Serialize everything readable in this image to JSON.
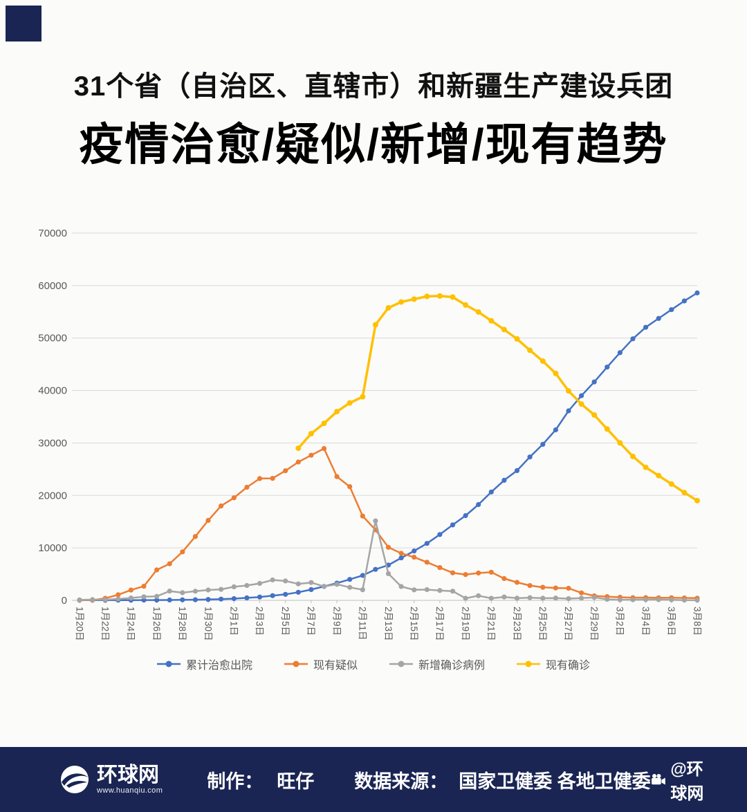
{
  "page": {
    "background": "#fbfbfa",
    "corner_color": "#1a2553"
  },
  "header": {
    "title_line1": "31个省（自治区、直辖市）和新疆生产建设兵团",
    "title_line2": "疫情治愈/疑似/新增/现有趋势"
  },
  "footer": {
    "background": "#1a2553",
    "logo_text": "环球网",
    "logo_url": "www.huanqiu.com",
    "credit_label": "制作：",
    "credit_value": "旺仔",
    "source_label": "数据来源：",
    "source_value": "国家卫健委 各地卫健委",
    "watermark": "@环球网"
  },
  "chart_data": {
    "type": "line",
    "title": "疫情治愈/疑似/新增/现有趋势",
    "xlabel": "",
    "ylabel": "",
    "ylim": [
      0,
      70000
    ],
    "y_tick_step": 10000,
    "x_tick_every": 2,
    "grid": true,
    "legend_position": "bottom",
    "grid_color": "#d9d9d9",
    "axis_color": "#bfbfbf",
    "tick_label_color": "#595959",
    "categories": [
      "1月20日",
      "1月21日",
      "1月22日",
      "1月23日",
      "1月24日",
      "1月25日",
      "1月26日",
      "1月27日",
      "1月28日",
      "1月29日",
      "1月30日",
      "1月31日",
      "2月1日",
      "2月2日",
      "2月3日",
      "2月4日",
      "2月5日",
      "2月6日",
      "2月7日",
      "2月8日",
      "2月9日",
      "2月10日",
      "2月11日",
      "2月12日",
      "2月13日",
      "2月14日",
      "2月15日",
      "2月16日",
      "2月17日",
      "2月18日",
      "2月19日",
      "2月20日",
      "2月21日",
      "2月22日",
      "2月23日",
      "2月24日",
      "2月25日",
      "2月26日",
      "2月27日",
      "2月28日",
      "2月29日",
      "3月1日",
      "3月2日",
      "3月3日",
      "3月4日",
      "3月5日",
      "3月6日",
      "3月7日",
      "3月8日"
    ],
    "series": [
      {
        "id": "cured",
        "name": "累计治愈出院",
        "color": "#4472C4",
        "line_width": 2.5,
        "marker_radius": 3.6,
        "values": [
          25,
          25,
          28,
          34,
          38,
          49,
          51,
          60,
          103,
          124,
          171,
          243,
          328,
          475,
          632,
          892,
          1153,
          1540,
          2050,
          2649,
          3281,
          3996,
          4740,
          5911,
          6723,
          8096,
          9419,
          10844,
          12552,
          14376,
          16155,
          18264,
          20659,
          22888,
          24734,
          27323,
          29745,
          32495,
          36117,
          39002,
          41625,
          44462,
          47204,
          49856,
          52045,
          53726,
          55404,
          57065,
          58600
        ]
      },
      {
        "id": "suspected",
        "name": "现有疑似",
        "color": "#ED7D31",
        "line_width": 2.5,
        "marker_radius": 3.6,
        "values": [
          54,
          37,
          393,
          1072,
          1965,
          2684,
          5794,
          6973,
          9239,
          12167,
          15238,
          17988,
          19544,
          21558,
          23214,
          23260,
          24702,
          26359,
          27657,
          28942,
          23589,
          21675,
          16067,
          13435,
          10109,
          8969,
          8228,
          7264,
          6242,
          5248,
          4922,
          5206,
          5365,
          4148,
          3434,
          2824,
          2491,
          2358,
          2308,
          1418,
          851,
          715,
          587,
          520,
          522,
          482,
          502,
          458,
          421
        ]
      },
      {
        "id": "new-confirmed",
        "name": "新增确诊病例",
        "color": "#A5A5A5",
        "line_width": 2.5,
        "marker_radius": 3.6,
        "values": [
          77,
          149,
          131,
          259,
          444,
          688,
          769,
          1771,
          1459,
          1737,
          1982,
          2102,
          2590,
          2829,
          3235,
          3887,
          3694,
          3143,
          3399,
          2656,
          3062,
          2478,
          2015,
          15152,
          5090,
          2641,
          2009,
          2048,
          1886,
          1749,
          394,
          889,
          397,
          648,
          409,
          508,
          406,
          433,
          327,
          427,
          573,
          202,
          125,
          119,
          139,
          143,
          99,
          44,
          40
        ]
      },
      {
        "id": "existing-confirmed",
        "name": "现有确诊",
        "color": "#FFC000",
        "line_width": 3.5,
        "marker_radius": 4,
        "values": [
          null,
          null,
          null,
          null,
          null,
          null,
          null,
          null,
          null,
          null,
          null,
          null,
          null,
          null,
          null,
          null,
          null,
          28985,
          31774,
          33738,
          35982,
          37626,
          38800,
          52526,
          55748,
          56873,
          57416,
          57934,
          58016,
          57805,
          56303,
          54965,
          53284,
          51606,
          49824,
          47672,
          45604,
          43258,
          39919,
          37414,
          35329,
          32652,
          30004,
          27433,
          25352,
          23784,
          22177,
          20533,
          19016
        ]
      }
    ]
  }
}
